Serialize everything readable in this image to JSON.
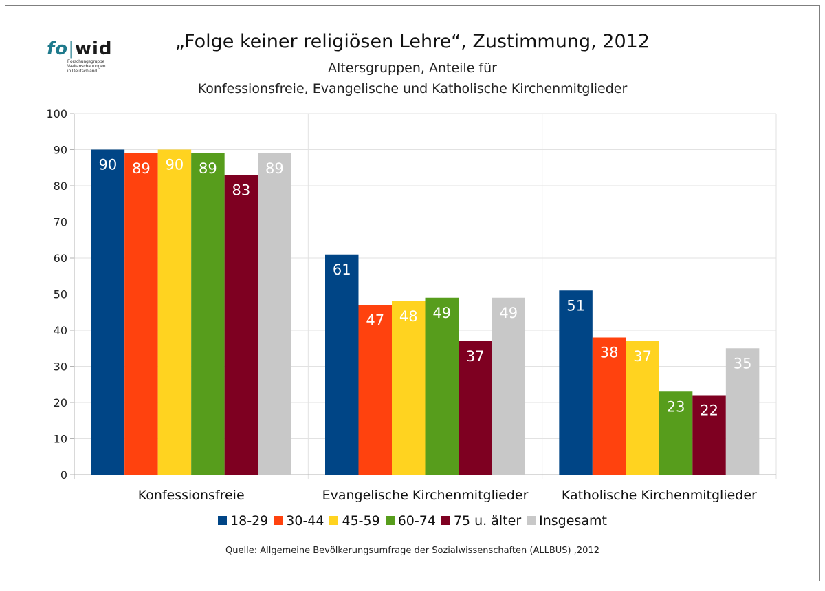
{
  "logo": {
    "fo": "fo",
    "wid": "wid",
    "sub_lines": [
      "Forschungsgruppe",
      "Weltanschauungen",
      "in Deutschland"
    ]
  },
  "title": "„Folge keiner religiösen Lehre“, Zustimmung, 2012",
  "subtitle_line1": "Altersgruppen, Anteile für",
  "subtitle_line2": "Konfessionsfreie, Evangelische und Katholische Kirchenmitglieder",
  "source": "Quelle: Allgemeine Bevölkerungsumfrage der Sozialwissenschaften (ALLBUS) ,2012",
  "chart_data": {
    "type": "bar",
    "categories": [
      "Konfessionsfreie",
      "Evangelische Kirchenmitglieder",
      "Katholische Kirchenmitglieder"
    ],
    "series": [
      {
        "name": "18-29",
        "color": "#004586",
        "values": [
          90,
          61,
          51
        ]
      },
      {
        "name": "30-44",
        "color": "#ff420e",
        "values": [
          89,
          47,
          38
        ]
      },
      {
        "name": "45-59",
        "color": "#ffd320",
        "values": [
          90,
          48,
          37
        ]
      },
      {
        "name": "60-74",
        "color": "#579d1c",
        "values": [
          89,
          49,
          23
        ]
      },
      {
        "name": "75 u. älter",
        "color": "#7e0021",
        "values": [
          83,
          37,
          22
        ]
      },
      {
        "name": "Insgesamt",
        "color": "#c8c8c8",
        "values": [
          89,
          49,
          35
        ]
      }
    ],
    "ylim": [
      0,
      100
    ],
    "yticks": [
      0,
      10,
      20,
      30,
      40,
      50,
      60,
      70,
      80,
      90,
      100
    ],
    "grid": true,
    "legend": "bottom",
    "data_labels": true
  }
}
